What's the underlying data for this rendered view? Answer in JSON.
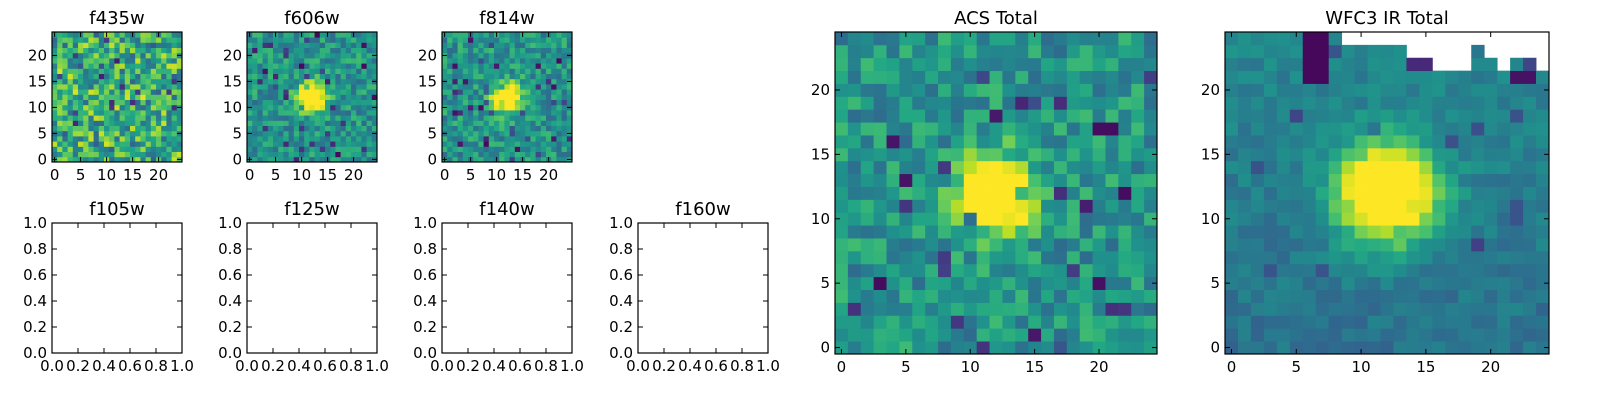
{
  "figure": {
    "colormap": "viridis",
    "colors": {
      "background": "#ffffff",
      "axis": "#000000",
      "missing_pixel": "#ffffff"
    }
  },
  "chart_data": [
    {
      "id": "f435w",
      "type": "heatmap",
      "title": "f435w",
      "grid_size": 25,
      "seed": 435,
      "noise": "high",
      "source_peak": 0.15,
      "xlim": [
        -0.5,
        24.5
      ],
      "ylim": [
        -0.5,
        24.5
      ],
      "xticks": [
        0,
        5,
        10,
        15,
        20
      ],
      "xtick_labels": [
        "0",
        "5",
        "10",
        "15",
        "20"
      ],
      "yticks": [
        0,
        5,
        10,
        15,
        20
      ],
      "ytick_labels": [
        "0",
        "5",
        "10",
        "15",
        "20"
      ]
    },
    {
      "id": "f606w",
      "type": "heatmap",
      "title": "f606w",
      "grid_size": 25,
      "seed": 606,
      "noise": "medium",
      "source_peak": 0.9,
      "source_center": [
        12,
        12
      ],
      "xlim": [
        -0.5,
        24.5
      ],
      "ylim": [
        -0.5,
        24.5
      ],
      "xticks": [
        0,
        5,
        10,
        15,
        20
      ],
      "xtick_labels": [
        "0",
        "5",
        "10",
        "15",
        "20"
      ],
      "yticks": [
        0,
        5,
        10,
        15,
        20
      ],
      "ytick_labels": [
        "0",
        "5",
        "10",
        "15",
        "20"
      ]
    },
    {
      "id": "f814w",
      "type": "heatmap",
      "title": "f814w",
      "grid_size": 25,
      "seed": 814,
      "noise": "medium",
      "source_peak": 0.9,
      "source_center": [
        12,
        12
      ],
      "xlim": [
        -0.5,
        24.5
      ],
      "ylim": [
        -0.5,
        24.5
      ],
      "xticks": [
        0,
        5,
        10,
        15,
        20
      ],
      "xtick_labels": [
        "0",
        "5",
        "10",
        "15",
        "20"
      ],
      "yticks": [
        0,
        5,
        10,
        15,
        20
      ],
      "ytick_labels": [
        "0",
        "5",
        "10",
        "15",
        "20"
      ]
    },
    {
      "id": "f105w",
      "type": "empty",
      "title": "f105w",
      "xlim": [
        0,
        1
      ],
      "ylim": [
        0,
        1
      ],
      "xticks": [
        0,
        0.2,
        0.4,
        0.6,
        0.8,
        1.0
      ],
      "xtick_labels": [
        "0.0",
        "0.2",
        "0.4",
        "0.6",
        "0.8",
        "1.0"
      ],
      "yticks": [
        0,
        0.2,
        0.4,
        0.6,
        0.8,
        1.0
      ],
      "ytick_labels": [
        "0.0",
        "0.2",
        "0.4",
        "0.6",
        "0.8",
        "1.0"
      ]
    },
    {
      "id": "f125w",
      "type": "empty",
      "title": "f125w",
      "xlim": [
        0,
        1
      ],
      "ylim": [
        0,
        1
      ],
      "xticks": [
        0,
        0.2,
        0.4,
        0.6,
        0.8,
        1.0
      ],
      "xtick_labels": [
        "0.0",
        "0.2",
        "0.4",
        "0.6",
        "0.8",
        "1.0"
      ],
      "yticks": [
        0,
        0.2,
        0.4,
        0.6,
        0.8,
        1.0
      ],
      "ytick_labels": [
        "0.0",
        "0.2",
        "0.4",
        "0.6",
        "0.8",
        "1.0"
      ]
    },
    {
      "id": "f140w",
      "type": "empty",
      "title": "f140w",
      "xlim": [
        0,
        1
      ],
      "ylim": [
        0,
        1
      ],
      "xticks": [
        0,
        0.2,
        0.4,
        0.6,
        0.8,
        1.0
      ],
      "xtick_labels": [
        "0.0",
        "0.2",
        "0.4",
        "0.6",
        "0.8",
        "1.0"
      ],
      "yticks": [
        0,
        0.2,
        0.4,
        0.6,
        0.8,
        1.0
      ],
      "ytick_labels": [
        "0.0",
        "0.2",
        "0.4",
        "0.6",
        "0.8",
        "1.0"
      ]
    },
    {
      "id": "f160w",
      "type": "empty",
      "title": "f160w",
      "xlim": [
        0,
        1
      ],
      "ylim": [
        0,
        1
      ],
      "xticks": [
        0,
        0.2,
        0.4,
        0.6,
        0.8,
        1.0
      ],
      "xtick_labels": [
        "0.0",
        "0.2",
        "0.4",
        "0.6",
        "0.8",
        "1.0"
      ],
      "yticks": [
        0,
        0.2,
        0.4,
        0.6,
        0.8,
        1.0
      ],
      "ytick_labels": [
        "0.0",
        "0.2",
        "0.4",
        "0.6",
        "0.8",
        "1.0"
      ]
    },
    {
      "id": "acs-total",
      "type": "heatmap",
      "title": "ACS Total",
      "grid_size": 25,
      "seed": 1001,
      "noise": "medium",
      "source_peak": 1.0,
      "source_center": [
        12,
        12
      ],
      "xlim": [
        -0.5,
        24.5
      ],
      "ylim": [
        -0.5,
        24.5
      ],
      "xticks": [
        0,
        5,
        10,
        15,
        20
      ],
      "xtick_labels": [
        "0",
        "5",
        "10",
        "15",
        "20"
      ],
      "yticks": [
        0,
        5,
        10,
        15,
        20
      ],
      "ytick_labels": [
        "0",
        "5",
        "10",
        "15",
        "20"
      ]
    },
    {
      "id": "wfc3-ir-total",
      "type": "heatmap",
      "title": "WFC3 IR Total",
      "grid_size": 25,
      "seed": 2002,
      "noise": "smooth",
      "source_peak": 1.0,
      "source_center": [
        12,
        12
      ],
      "masked_top_region": true,
      "xlim": [
        -0.5,
        24.5
      ],
      "ylim": [
        -0.5,
        24.5
      ],
      "xticks": [
        0,
        5,
        10,
        15,
        20
      ],
      "xtick_labels": [
        "0",
        "5",
        "10",
        "15",
        "20"
      ],
      "yticks": [
        0,
        5,
        10,
        15,
        20
      ],
      "ytick_labels": [
        "0",
        "5",
        "10",
        "15",
        "20"
      ]
    }
  ]
}
